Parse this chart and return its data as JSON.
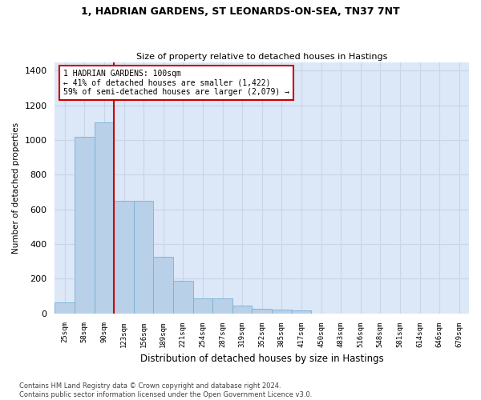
{
  "title": "1, HADRIAN GARDENS, ST LEONARDS-ON-SEA, TN37 7NT",
  "subtitle": "Size of property relative to detached houses in Hastings",
  "xlabel": "Distribution of detached houses by size in Hastings",
  "ylabel": "Number of detached properties",
  "bar_values": [
    62,
    1020,
    1100,
    650,
    650,
    325,
    190,
    88,
    88,
    45,
    28,
    22,
    15,
    0,
    0,
    0,
    0,
    0,
    0,
    0,
    0
  ],
  "bin_labels": [
    "25sqm",
    "58sqm",
    "90sqm",
    "123sqm",
    "156sqm",
    "189sqm",
    "221sqm",
    "254sqm",
    "287sqm",
    "319sqm",
    "352sqm",
    "385sqm",
    "417sqm",
    "450sqm",
    "483sqm",
    "516sqm",
    "548sqm",
    "581sqm",
    "614sqm",
    "646sqm",
    "679sqm"
  ],
  "bar_color": "#b8d0e8",
  "bar_edge_color": "#7aafd4",
  "annotation_line1": "1 HADRIAN GARDENS: 100sqm",
  "annotation_line2": "← 41% of detached houses are smaller (1,422)",
  "annotation_line3": "59% of semi-detached houses are larger (2,079) →",
  "annotation_box_color": "#ffffff",
  "annotation_box_edge_color": "#cc0000",
  "vline_color": "#cc0000",
  "grid_color": "#c8d4e8",
  "background_color": "#dce8f8",
  "footer_text": "Contains HM Land Registry data © Crown copyright and database right 2024.\nContains public sector information licensed under the Open Government Licence v3.0.",
  "ylim": [
    0,
    1450
  ],
  "yticks": [
    0,
    200,
    400,
    600,
    800,
    1000,
    1200,
    1400
  ],
  "vline_x_bar_index": 2.5
}
